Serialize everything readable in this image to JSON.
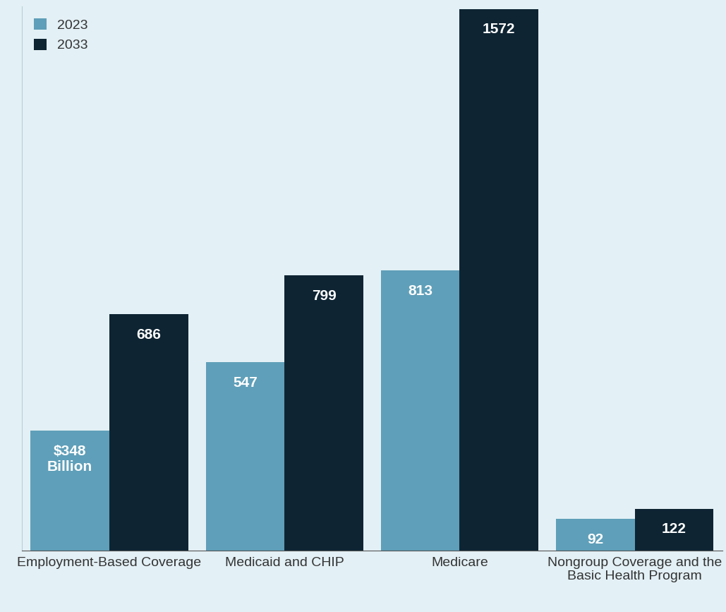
{
  "chart_data": {
    "type": "bar",
    "categories": [
      "Employment-Based Coverage",
      "Medicaid and CHIP",
      "Medicare",
      "Nongroup Coverage and the Basic Health Program"
    ],
    "series": [
      {
        "name": "2023",
        "color": "#5f9fb9",
        "values": [
          348,
          547,
          813,
          92
        ],
        "value_labels": [
          "$348 Billion",
          "547",
          "813",
          "92"
        ]
      },
      {
        "name": "2033",
        "color": "#0e2433",
        "values": [
          686,
          799,
          1572,
          122
        ]
      }
    ],
    "ylim": [
      0,
      1580
    ],
    "data_labels": true,
    "tick_labels": "x",
    "legend": "upper left"
  }
}
